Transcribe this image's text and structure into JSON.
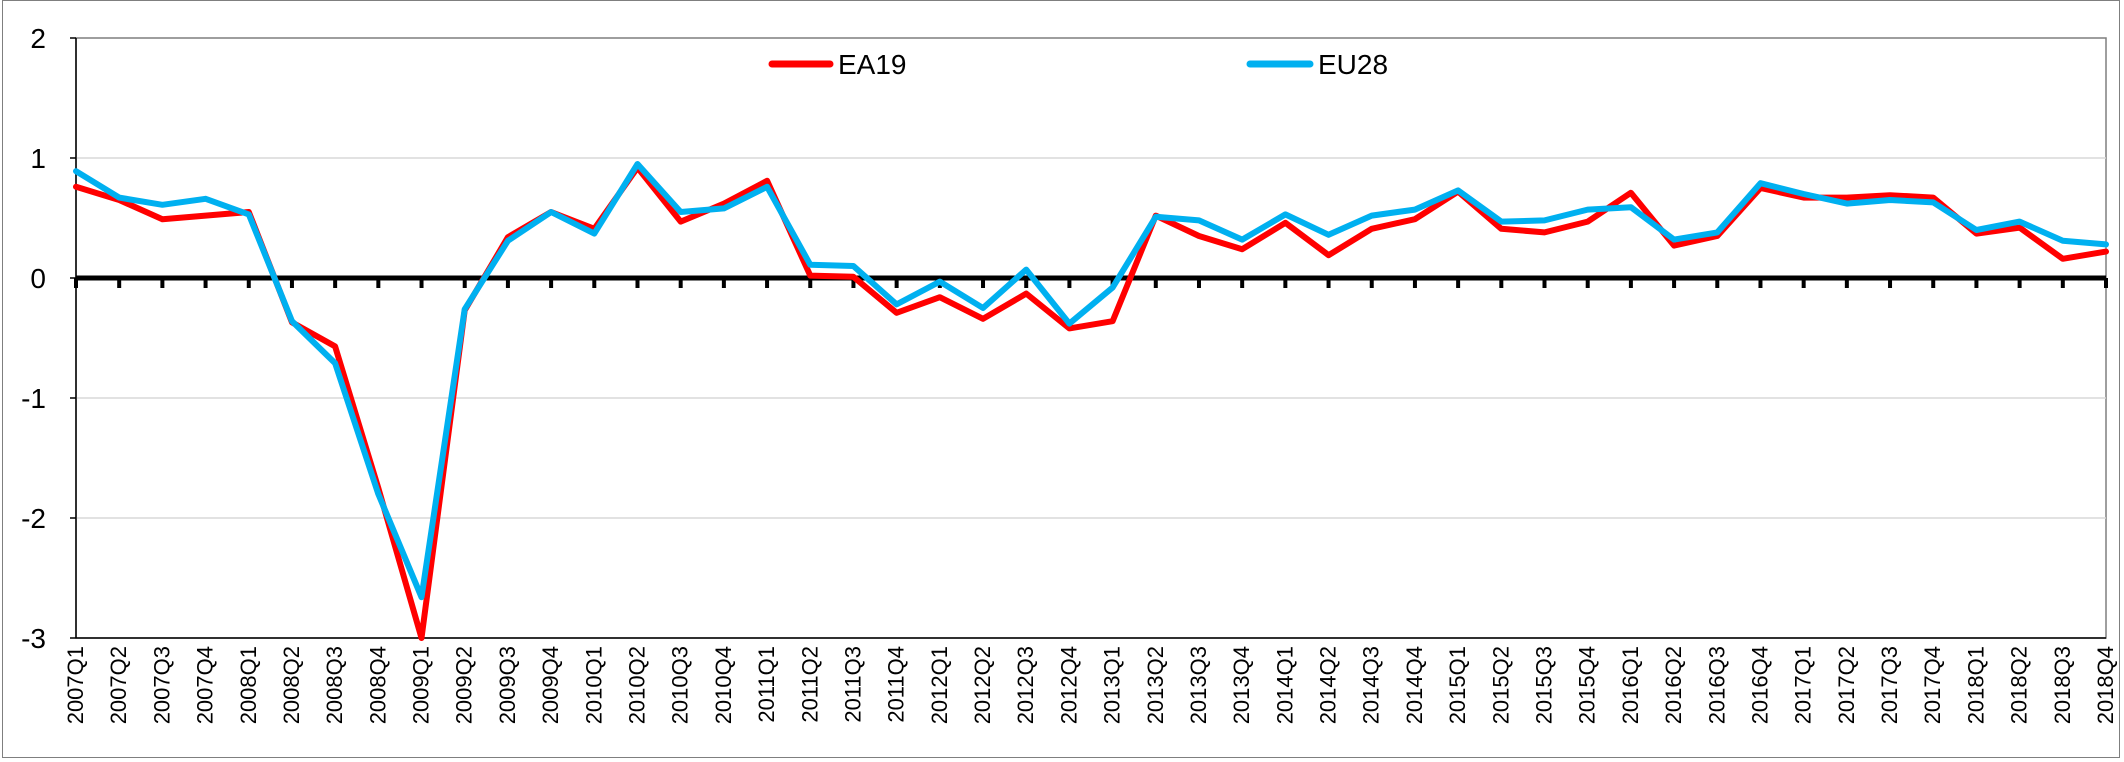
{
  "chart_data": {
    "type": "line",
    "title": "",
    "xlabel": "",
    "ylabel": "",
    "ylim": [
      -3,
      2
    ],
    "yticks": [
      2,
      1,
      0,
      -1,
      -2,
      -3
    ],
    "ytick_labels": [
      "2",
      "1",
      "0",
      "-1",
      "-2",
      "-3"
    ],
    "grid": true,
    "legend_position": "top-center",
    "categories": [
      "2007Q1",
      "2007Q2",
      "2007Q3",
      "2007Q4",
      "2008Q1",
      "2008Q2",
      "2008Q3",
      "2008Q4",
      "2009Q1",
      "2009Q2",
      "2009Q3",
      "2009Q4",
      "2010Q1",
      "2010Q2",
      "2010Q3",
      "2010Q4",
      "2011Q1",
      "2011Q2",
      "2011Q3",
      "2011Q4",
      "2012Q1",
      "2012Q2",
      "2012Q3",
      "2012Q4",
      "2013Q1",
      "2013Q2",
      "2013Q3",
      "2013Q4",
      "2014Q1",
      "2014Q2",
      "2014Q3",
      "2014Q4",
      "2015Q1",
      "2015Q2",
      "2015Q3",
      "2015Q4",
      "2016Q1",
      "2016Q2",
      "2016Q3",
      "2016Q4",
      "2017Q1",
      "2017Q2",
      "2017Q3",
      "2017Q4",
      "2018Q1",
      "2018Q2",
      "2018Q3",
      "2018Q4"
    ],
    "series": [
      {
        "name": "EA19",
        "color": "#ff0000",
        "values": [
          0.76,
          0.65,
          0.49,
          0.52,
          0.55,
          -0.37,
          -0.57,
          -1.75,
          -3.0,
          -0.27,
          0.34,
          0.55,
          0.41,
          0.92,
          0.47,
          0.62,
          0.81,
          0.02,
          0.01,
          -0.29,
          -0.16,
          -0.34,
          -0.13,
          -0.42,
          -0.36,
          0.52,
          0.35,
          0.24,
          0.46,
          0.19,
          0.41,
          0.49,
          0.72,
          0.41,
          0.38,
          0.47,
          0.71,
          0.27,
          0.35,
          0.75,
          0.67,
          0.67,
          0.69,
          0.67,
          0.37,
          0.42,
          0.16,
          0.22
        ]
      },
      {
        "name": "EU28",
        "color": "#00b0f0",
        "values": [
          0.89,
          0.67,
          0.61,
          0.66,
          0.53,
          -0.36,
          -0.71,
          -1.8,
          -2.66,
          -0.26,
          0.31,
          0.55,
          0.37,
          0.95,
          0.55,
          0.58,
          0.76,
          0.11,
          0.1,
          -0.22,
          -0.03,
          -0.25,
          0.07,
          -0.38,
          -0.08,
          0.51,
          0.48,
          0.32,
          0.53,
          0.36,
          0.52,
          0.57,
          0.73,
          0.47,
          0.48,
          0.57,
          0.59,
          0.32,
          0.38,
          0.79,
          0.7,
          0.62,
          0.65,
          0.63,
          0.4,
          0.47,
          0.31,
          0.28
        ]
      }
    ]
  }
}
